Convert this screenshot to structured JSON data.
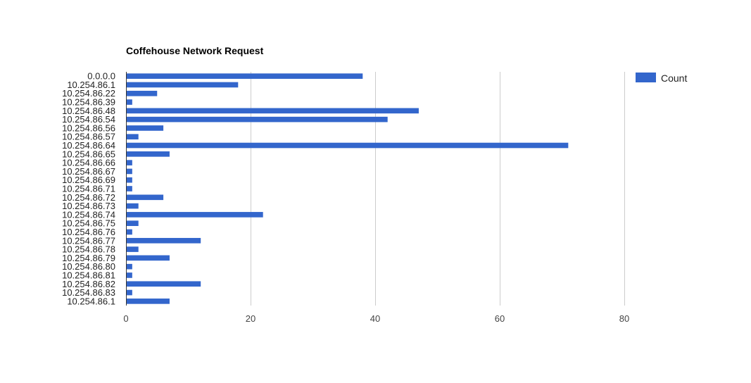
{
  "chart_data": {
    "type": "bar",
    "orientation": "horizontal",
    "title": "Coffehouse Network Request",
    "xlabel": "",
    "ylabel": "",
    "categories": [
      "0.0.0.0",
      "10.254.86.1",
      "10.254.86.22",
      "10.254.86.39",
      "10.254.86.48",
      "10.254.86.54",
      "10.254.86.56",
      "10.254.86.57",
      "10.254.86.64",
      "10.254.86.65",
      "10.254.86.66",
      "10.254.86.67",
      "10.254.86.69",
      "10.254.86.71",
      "10.254.86.72",
      "10.254.86.73",
      "10.254.86.74",
      "10.254.86.75",
      "10.254.86.76",
      "10.254.86.77",
      "10.254.86.78",
      "10.254.86.79",
      "10.254.86.80",
      "10.254.86.81",
      "10.254.86.82",
      "10.254.86.83",
      "10.254.86.1"
    ],
    "series": [
      {
        "name": "Count",
        "color": "#3366cc",
        "values": [
          38,
          18,
          5,
          1,
          47,
          42,
          6,
          2,
          71,
          7,
          1,
          1,
          1,
          1,
          6,
          2,
          22,
          2,
          1,
          12,
          2,
          7,
          1,
          1,
          12,
          1,
          7
        ]
      }
    ],
    "xlim": [
      0,
      80
    ],
    "xticks": [
      0,
      20,
      40,
      60,
      80
    ],
    "grid": true,
    "legend": {
      "position": "right",
      "entries": [
        "Count"
      ]
    }
  }
}
